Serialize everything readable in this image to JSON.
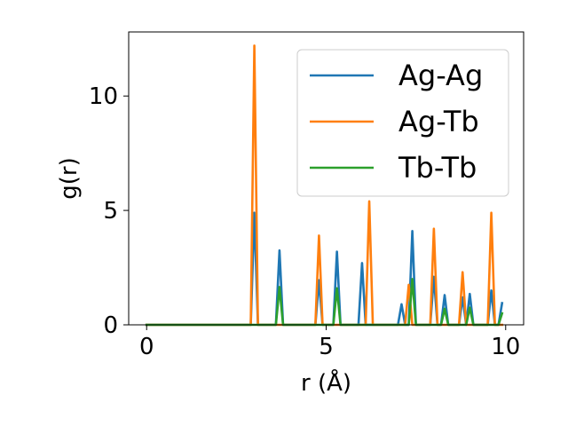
{
  "chart_data": {
    "type": "line",
    "xlabel": "r (Å)",
    "ylabel": "g(r)",
    "xlim": [
      -0.5,
      10.5
    ],
    "ylim": [
      0,
      12.8
    ],
    "xticks": [
      0,
      5,
      10
    ],
    "yticks": [
      0,
      5,
      10
    ],
    "grid": false,
    "legend_position": "top-right",
    "x": [
      0.0,
      0.1,
      0.2,
      0.3,
      0.4,
      0.5,
      0.6,
      0.7,
      0.8,
      0.9,
      1.0,
      1.1,
      1.2,
      1.3,
      1.4,
      1.5,
      1.6,
      1.7,
      1.8,
      1.9,
      2.0,
      2.1,
      2.2,
      2.3,
      2.4,
      2.5,
      2.6,
      2.7,
      2.8,
      2.9,
      3.0,
      3.1,
      3.2,
      3.3,
      3.4,
      3.5,
      3.6,
      3.7,
      3.8,
      3.9,
      4.0,
      4.1,
      4.2,
      4.3,
      4.4,
      4.5,
      4.6,
      4.7,
      4.8,
      4.9,
      5.0,
      5.1,
      5.2,
      5.3,
      5.4,
      5.5,
      5.6,
      5.7,
      5.8,
      5.9,
      6.0,
      6.1,
      6.2,
      6.3,
      6.4,
      6.5,
      6.6,
      6.7,
      6.8,
      6.9,
      7.0,
      7.1,
      7.2,
      7.3,
      7.4,
      7.5,
      7.6,
      7.7,
      7.8,
      7.9,
      8.0,
      8.1,
      8.2,
      8.3,
      8.4,
      8.5,
      8.6,
      8.7,
      8.8,
      8.9,
      9.0,
      9.1,
      9.2,
      9.3,
      9.4,
      9.5,
      9.6,
      9.7,
      9.8,
      9.9
    ],
    "series": [
      {
        "name": "Ag-Ag",
        "color": "#1f77b4",
        "values": [
          0,
          0,
          0,
          0,
          0,
          0,
          0,
          0,
          0,
          0,
          0,
          0,
          0,
          0,
          0,
          0,
          0,
          0,
          0,
          0,
          0,
          0,
          0,
          0,
          0,
          0,
          0,
          0,
          0,
          0,
          4.9,
          0,
          0,
          0,
          0,
          0,
          0,
          3.25,
          0,
          0,
          0,
          0,
          0,
          0,
          0,
          0,
          0,
          0,
          1.95,
          0,
          0,
          0,
          0,
          3.2,
          0,
          0,
          0,
          0,
          0,
          0,
          2.7,
          0,
          0,
          0,
          0,
          0,
          0,
          0,
          0,
          0,
          0,
          0.9,
          0,
          0,
          4.1,
          0,
          0,
          0,
          0,
          0,
          2.1,
          0,
          0,
          1.3,
          0,
          0,
          0,
          0,
          1.2,
          0,
          1.35,
          0,
          0,
          0,
          0,
          0,
          1.5,
          0,
          0,
          0.95
        ]
      },
      {
        "name": "Ag-Tb",
        "color": "#ff7f0e",
        "values": [
          0,
          0,
          0,
          0,
          0,
          0,
          0,
          0,
          0,
          0,
          0,
          0,
          0,
          0,
          0,
          0,
          0,
          0,
          0,
          0,
          0,
          0,
          0,
          0,
          0,
          0,
          0,
          0,
          0,
          0,
          12.2,
          0,
          0,
          0,
          0,
          0,
          0,
          0,
          0,
          0,
          0,
          0,
          0,
          0,
          0,
          0,
          0,
          0,
          3.9,
          0,
          0,
          0,
          0,
          0,
          0,
          0,
          0,
          0,
          0,
          0,
          0,
          0,
          5.4,
          0,
          0,
          0,
          0,
          0,
          0,
          0,
          0,
          0,
          0,
          1.75,
          0,
          0,
          0,
          0,
          0,
          0,
          4.2,
          0,
          0,
          0,
          0,
          0,
          0,
          0,
          2.3,
          0,
          0,
          0,
          0,
          0,
          0,
          0,
          4.9,
          0,
          0,
          0
        ]
      },
      {
        "name": "Tb-Tb",
        "color": "#2ca02c",
        "values": [
          0,
          0,
          0,
          0,
          0,
          0,
          0,
          0,
          0,
          0,
          0,
          0,
          0,
          0,
          0,
          0,
          0,
          0,
          0,
          0,
          0,
          0,
          0,
          0,
          0,
          0,
          0,
          0,
          0,
          0,
          0,
          0,
          0,
          0,
          0,
          0,
          0,
          1.65,
          0,
          0,
          0,
          0,
          0,
          0,
          0,
          0,
          0,
          0,
          0,
          0,
          0,
          0,
          0,
          1.6,
          0,
          0,
          0,
          0,
          0,
          0,
          0,
          0,
          0,
          0,
          0,
          0,
          0,
          0,
          0,
          0,
          0,
          0,
          0,
          0,
          2.0,
          0,
          0,
          0,
          0,
          0,
          0,
          0,
          0,
          0.7,
          0,
          0,
          0,
          0,
          0,
          0,
          0.75,
          0,
          0,
          0,
          0,
          0,
          0,
          0,
          0,
          0.5
        ]
      }
    ]
  }
}
